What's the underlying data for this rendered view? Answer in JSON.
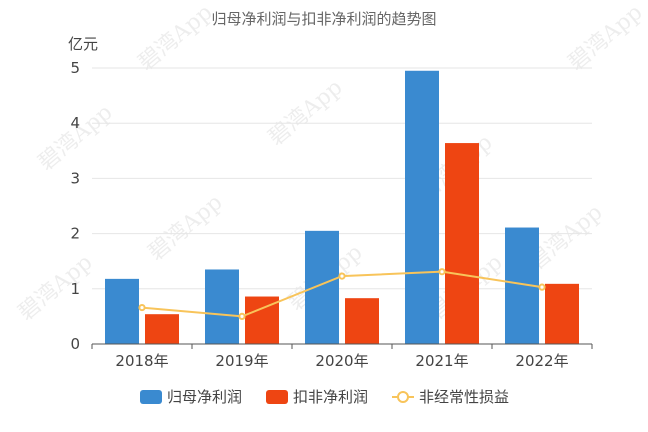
{
  "watermark": "碧湾App",
  "chart_data": {
    "type": "bar",
    "title": "归母净利润与扣非净利润的趋势图",
    "ylabel": "亿元",
    "xlabel": "",
    "ylim": [
      0,
      5
    ],
    "yticks": [
      "0",
      "1",
      "2",
      "3",
      "4",
      "5"
    ],
    "categories": [
      "2018年",
      "2019年",
      "2020年",
      "2021年",
      "2022年"
    ],
    "series": [
      {
        "name": "归母净利润",
        "kind": "bar",
        "color": "#3a8ad0",
        "values": [
          1.18,
          1.35,
          2.05,
          4.95,
          2.11
        ]
      },
      {
        "name": "扣非净利润",
        "kind": "bar",
        "color": "#ee4512",
        "values": [
          0.54,
          0.86,
          0.83,
          3.64,
          1.09
        ]
      },
      {
        "name": "非经常性损益",
        "kind": "line",
        "color": "#f8c45a",
        "values": [
          0.66,
          0.5,
          1.23,
          1.31,
          1.03
        ]
      }
    ],
    "legend_position": "bottom",
    "grid": true
  }
}
